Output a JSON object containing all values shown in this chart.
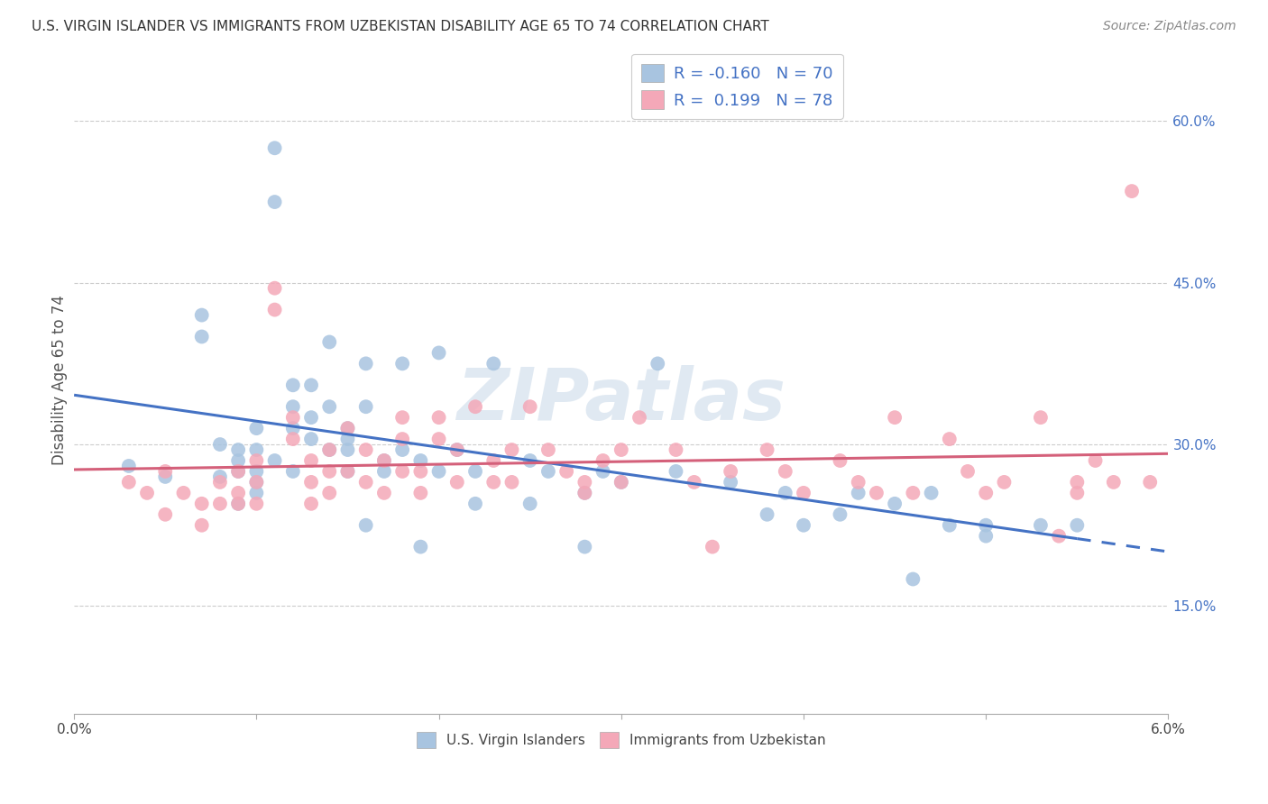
{
  "title": "U.S. VIRGIN ISLANDER VS IMMIGRANTS FROM UZBEKISTAN DISABILITY AGE 65 TO 74 CORRELATION CHART",
  "source": "Source: ZipAtlas.com",
  "ylabel": "Disability Age 65 to 74",
  "ytick_vals": [
    0.15,
    0.3,
    0.45,
    0.6
  ],
  "xlim": [
    0.0,
    0.06
  ],
  "ylim": [
    0.05,
    0.67
  ],
  "r_blue": -0.16,
  "n_blue": 70,
  "r_pink": 0.199,
  "n_pink": 78,
  "color_blue": "#a8c4e0",
  "color_pink": "#f4a8b8",
  "line_blue": "#4472c4",
  "line_pink": "#d4607a",
  "watermark": "ZIPatlas",
  "legend_label_blue": "U.S. Virgin Islanders",
  "legend_label_pink": "Immigrants from Uzbekistan",
  "blue_x": [
    0.003,
    0.005,
    0.007,
    0.007,
    0.008,
    0.008,
    0.009,
    0.009,
    0.009,
    0.009,
    0.01,
    0.01,
    0.01,
    0.01,
    0.01,
    0.011,
    0.011,
    0.011,
    0.012,
    0.012,
    0.012,
    0.012,
    0.013,
    0.013,
    0.013,
    0.014,
    0.014,
    0.014,
    0.015,
    0.015,
    0.015,
    0.015,
    0.016,
    0.016,
    0.016,
    0.017,
    0.017,
    0.018,
    0.018,
    0.019,
    0.019,
    0.02,
    0.02,
    0.021,
    0.022,
    0.022,
    0.023,
    0.025,
    0.025,
    0.026,
    0.028,
    0.028,
    0.029,
    0.03,
    0.032,
    0.033,
    0.036,
    0.038,
    0.039,
    0.04,
    0.042,
    0.043,
    0.045,
    0.046,
    0.047,
    0.048,
    0.05,
    0.05,
    0.053,
    0.055
  ],
  "blue_y": [
    0.28,
    0.27,
    0.42,
    0.4,
    0.3,
    0.27,
    0.295,
    0.285,
    0.275,
    0.245,
    0.315,
    0.295,
    0.275,
    0.265,
    0.255,
    0.575,
    0.525,
    0.285,
    0.355,
    0.335,
    0.315,
    0.275,
    0.355,
    0.325,
    0.305,
    0.395,
    0.335,
    0.295,
    0.315,
    0.305,
    0.295,
    0.275,
    0.375,
    0.335,
    0.225,
    0.285,
    0.275,
    0.375,
    0.295,
    0.285,
    0.205,
    0.385,
    0.275,
    0.295,
    0.275,
    0.245,
    0.375,
    0.285,
    0.245,
    0.275,
    0.255,
    0.205,
    0.275,
    0.265,
    0.375,
    0.275,
    0.265,
    0.235,
    0.255,
    0.225,
    0.235,
    0.255,
    0.245,
    0.175,
    0.255,
    0.225,
    0.225,
    0.215,
    0.225,
    0.225
  ],
  "pink_x": [
    0.003,
    0.004,
    0.005,
    0.005,
    0.006,
    0.007,
    0.007,
    0.008,
    0.008,
    0.009,
    0.009,
    0.009,
    0.01,
    0.01,
    0.01,
    0.011,
    0.011,
    0.012,
    0.012,
    0.013,
    0.013,
    0.013,
    0.014,
    0.014,
    0.014,
    0.015,
    0.015,
    0.016,
    0.016,
    0.017,
    0.017,
    0.018,
    0.018,
    0.018,
    0.019,
    0.019,
    0.02,
    0.02,
    0.021,
    0.021,
    0.022,
    0.023,
    0.023,
    0.024,
    0.024,
    0.025,
    0.026,
    0.027,
    0.028,
    0.028,
    0.029,
    0.03,
    0.03,
    0.031,
    0.033,
    0.034,
    0.035,
    0.036,
    0.038,
    0.039,
    0.04,
    0.042,
    0.043,
    0.044,
    0.045,
    0.046,
    0.048,
    0.049,
    0.05,
    0.051,
    0.053,
    0.054,
    0.055,
    0.055,
    0.056,
    0.057,
    0.058,
    0.059
  ],
  "pink_y": [
    0.265,
    0.255,
    0.275,
    0.235,
    0.255,
    0.245,
    0.225,
    0.265,
    0.245,
    0.275,
    0.255,
    0.245,
    0.285,
    0.265,
    0.245,
    0.445,
    0.425,
    0.325,
    0.305,
    0.285,
    0.265,
    0.245,
    0.295,
    0.275,
    0.255,
    0.315,
    0.275,
    0.295,
    0.265,
    0.285,
    0.255,
    0.325,
    0.305,
    0.275,
    0.275,
    0.255,
    0.325,
    0.305,
    0.295,
    0.265,
    0.335,
    0.285,
    0.265,
    0.295,
    0.265,
    0.335,
    0.295,
    0.275,
    0.265,
    0.255,
    0.285,
    0.295,
    0.265,
    0.325,
    0.295,
    0.265,
    0.205,
    0.275,
    0.295,
    0.275,
    0.255,
    0.285,
    0.265,
    0.255,
    0.325,
    0.255,
    0.305,
    0.275,
    0.255,
    0.265,
    0.325,
    0.215,
    0.265,
    0.255,
    0.285,
    0.265,
    0.535,
    0.265
  ],
  "blue_line_x_solid_end": 0.055,
  "blue_line_x_dash_end": 0.06,
  "blue_reg_intercept": 0.302,
  "blue_reg_slope": -1.45,
  "pink_reg_intercept": 0.243,
  "pink_reg_slope": 0.93
}
